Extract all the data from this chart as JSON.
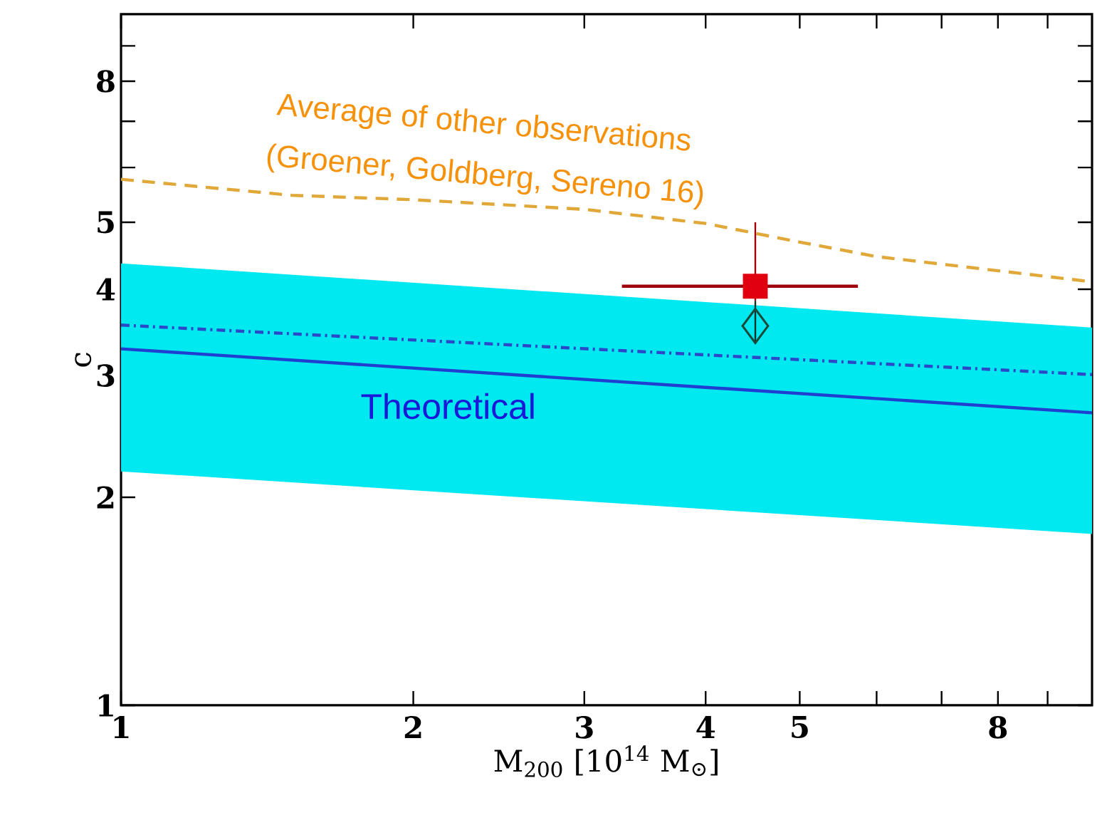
{
  "chart_data": {
    "type": "line",
    "log": "xy",
    "xlabel": "M$_{200}$ [10$^{14}$ M$_{⊙}$]",
    "ylabel": "c",
    "xlim": [
      1,
      10
    ],
    "ylim": [
      1,
      10
    ],
    "xticks": [
      1,
      2,
      3,
      4,
      5,
      {
        "value": 6,
        "label": null
      },
      {
        "value": 7,
        "label": null
      },
      8,
      {
        "value": 9,
        "label": null
      }
    ],
    "yticks": [
      1,
      2,
      3,
      4,
      5,
      {
        "value": 6,
        "label": null
      },
      {
        "value": 7,
        "label": null
      },
      8,
      {
        "value": 9,
        "label": null
      }
    ],
    "grid": false,
    "series": [
      {
        "color": "#1f3fd0",
        "line_style": "solid",
        "marker": "none",
        "x": [
          1,
          10
        ],
        "values": [
          3.28,
          2.65
        ],
        "lower": [
          2.18,
          1.77
        ],
        "upper": [
          4.36,
          3.52
        ]
      },
      {
        "color": "#2a48c8",
        "line_style": "dashdot",
        "marker": "none",
        "x": [
          1,
          10
        ],
        "values": [
          3.55,
          3.01
        ]
      },
      {
        "color": "#e0a838",
        "line_style": "dashed",
        "marker": "none",
        "x": [
          1,
          1.5,
          2,
          3,
          4,
          5,
          6,
          7.5,
          10
        ],
        "values": [
          5.77,
          5.47,
          5.39,
          5.22,
          4.98,
          4.68,
          4.46,
          4.3,
          4.1
        ]
      },
      {
        "type": "scatter",
        "color": "#e00010",
        "marker": "square",
        "x": [
          4.5
        ],
        "values": [
          4.04
        ],
        "errors": [
          [
            3.85,
            5.0
          ]
        ],
        "xerrors": [
          [
            3.28,
            5.74
          ]
        ]
      },
      {
        "type": "scatter",
        "color": "#1a4a3a",
        "marker": "diamond",
        "x": [
          4.5
        ],
        "values": [
          3.54
        ],
        "errors": [
          [
            3.35,
            3.85
          ]
        ]
      }
    ],
    "annotations": [
      "Theoretical",
      "Average of other observations",
      "(Groener, Goldberg, Sereno 16)"
    ]
  }
}
